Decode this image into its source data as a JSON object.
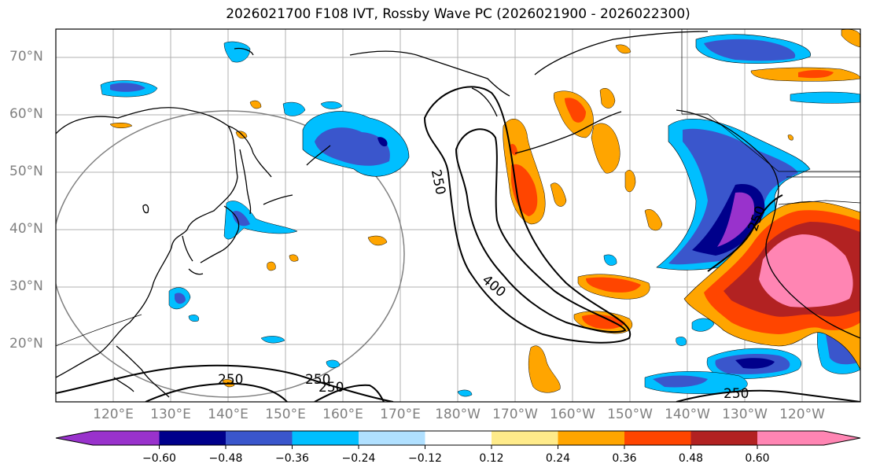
{
  "title": "2026021700 F108 IVT, Rossby Wave PC (2026021900 - 2026022300)",
  "lat_labels": [
    "70°N",
    "60°N",
    "50°N",
    "40°N",
    "30°N",
    "20°N"
  ],
  "lon_labels": [
    "120°E",
    "130°E",
    "140°E",
    "150°E",
    "160°E",
    "170°E",
    "180°W",
    "170°W",
    "160°W",
    "150°W",
    "140°W",
    "130°W",
    "120°W"
  ],
  "contour_labels": {
    "c250_north": "250",
    "c400": "400",
    "c250_west": "250",
    "c250_mid": "250",
    "c250_mid2": "250",
    "c250_east": "250",
    "c250_coast": "250"
  },
  "colorbar": {
    "tick_labels": [
      "−0.60",
      "−0.48",
      "−0.36",
      "−0.24",
      "−0.12",
      "0.12",
      "0.24",
      "0.36",
      "0.48",
      "0.60"
    ],
    "colors": [
      "#9932cc",
      "#00008b",
      "#3a56cc",
      "#00bfff",
      "#b0e0ff",
      "#ffffff",
      "#ffeb8a",
      "#ffa500",
      "#ff4500",
      "#b22222",
      "#ff85b3"
    ]
  },
  "colors": {
    "purple": "#9932cc",
    "navy": "#00008b",
    "blue": "#3a56cc",
    "cyan": "#00bfff",
    "lightblue": "#b0e0ff",
    "yellow": "#ffeb8a",
    "orange": "#ffa500",
    "redorange": "#ff4500",
    "firebrick": "#b22222",
    "pink": "#ff85b3"
  }
}
